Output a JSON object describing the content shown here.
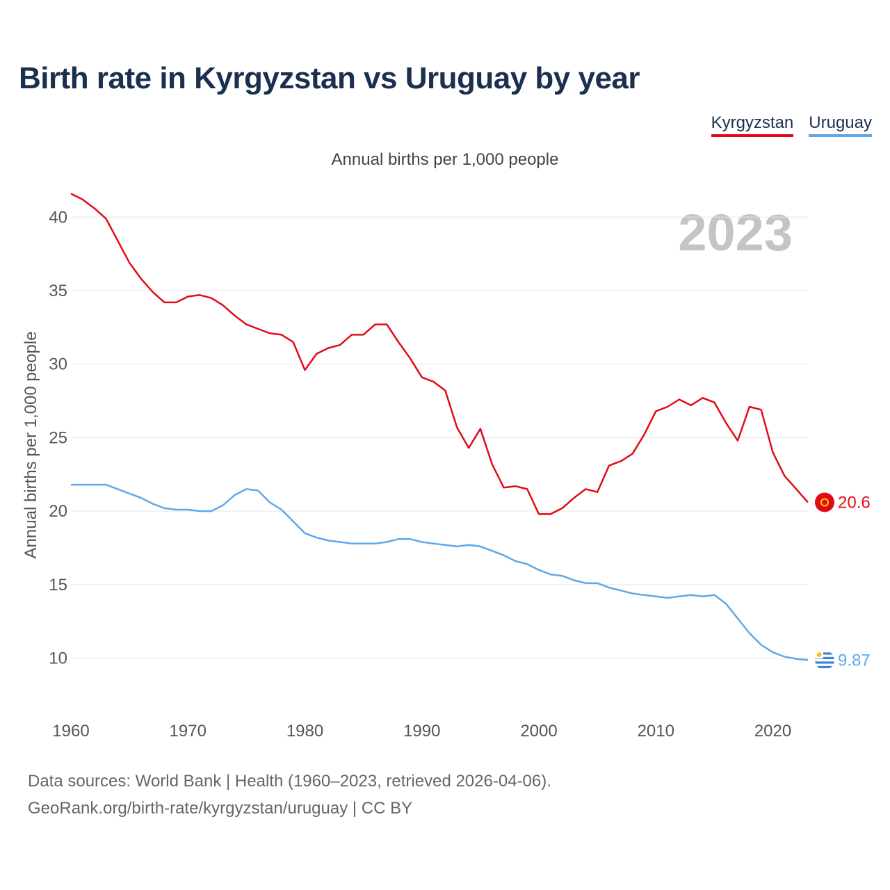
{
  "title": "Birth rate in Kyrgyzstan vs Uruguay by year",
  "subtitle": "Annual births per 1,000 people",
  "legend": [
    {
      "name": "Kyrgyzstan",
      "color": "#e30a17"
    },
    {
      "name": "Uruguay",
      "color": "#5ea8ea"
    }
  ],
  "year_label": "2023",
  "footer": {
    "line1": "Data sources: World Bank | Health (1960–2023, retrieved 2026-04-06).",
    "line2": "GeoRank.org/birth-rate/kyrgyzstan/uruguay | CC BY"
  },
  "chart_data": {
    "type": "line",
    "title": "Birth rate in Kyrgyzstan vs Uruguay by year",
    "subtitle": "Annual births per 1,000 people",
    "xlabel": "",
    "ylabel": "Annual births per 1,000 people",
    "xlim": [
      1960,
      2023
    ],
    "ylim": [
      7,
      42
    ],
    "x_ticks": [
      1960,
      1970,
      1980,
      1990,
      2000,
      2010,
      2020
    ],
    "y_ticks": [
      10,
      15,
      20,
      25,
      30,
      35,
      40
    ],
    "grid": true,
    "legend_position": "top-right",
    "x": [
      1960,
      1961,
      1962,
      1963,
      1964,
      1965,
      1966,
      1967,
      1968,
      1969,
      1970,
      1971,
      1972,
      1973,
      1974,
      1975,
      1976,
      1977,
      1978,
      1979,
      1980,
      1981,
      1982,
      1983,
      1984,
      1985,
      1986,
      1987,
      1988,
      1989,
      1990,
      1991,
      1992,
      1993,
      1994,
      1995,
      1996,
      1997,
      1998,
      1999,
      2000,
      2001,
      2002,
      2003,
      2004,
      2005,
      2006,
      2007,
      2008,
      2009,
      2010,
      2011,
      2012,
      2013,
      2014,
      2015,
      2016,
      2017,
      2018,
      2019,
      2020,
      2021,
      2022,
      2023
    ],
    "series": [
      {
        "name": "Kyrgyzstan",
        "color": "#e30a17",
        "end_label": "20.6",
        "values": [
          41.6,
          41.2,
          40.6,
          39.9,
          38.4,
          36.9,
          35.8,
          34.9,
          34.2,
          34.2,
          34.6,
          34.7,
          34.5,
          34.0,
          33.3,
          32.7,
          32.4,
          32.1,
          32.0,
          31.5,
          29.6,
          30.7,
          31.1,
          31.3,
          32.0,
          32.0,
          32.7,
          32.7,
          31.5,
          30.4,
          29.1,
          28.8,
          28.2,
          25.7,
          24.3,
          25.6,
          23.2,
          21.6,
          21.7,
          21.5,
          19.8,
          19.8,
          20.2,
          20.9,
          21.5,
          21.3,
          23.1,
          23.4,
          23.9,
          25.2,
          26.8,
          27.1,
          27.6,
          27.2,
          27.7,
          27.4,
          26.0,
          24.8,
          27.1,
          26.9,
          24.0,
          22.4,
          21.5,
          20.6
        ]
      },
      {
        "name": "Uruguay",
        "color": "#5ea8ea",
        "end_label": "9.87",
        "values": [
          21.8,
          21.8,
          21.8,
          21.8,
          21.5,
          21.2,
          20.9,
          20.5,
          20.2,
          20.1,
          20.1,
          20.0,
          20.0,
          20.4,
          21.1,
          21.5,
          21.4,
          20.6,
          20.1,
          19.3,
          18.5,
          18.2,
          18.0,
          17.9,
          17.8,
          17.8,
          17.8,
          17.9,
          18.1,
          18.1,
          17.9,
          17.8,
          17.7,
          17.6,
          17.7,
          17.6,
          17.3,
          17.0,
          16.6,
          16.4,
          16.0,
          15.7,
          15.6,
          15.3,
          15.1,
          15.1,
          14.8,
          14.6,
          14.4,
          14.3,
          14.2,
          14.1,
          14.2,
          14.3,
          14.2,
          14.3,
          13.7,
          12.7,
          11.7,
          10.9,
          10.4,
          10.1,
          9.95,
          9.87
        ]
      }
    ]
  }
}
